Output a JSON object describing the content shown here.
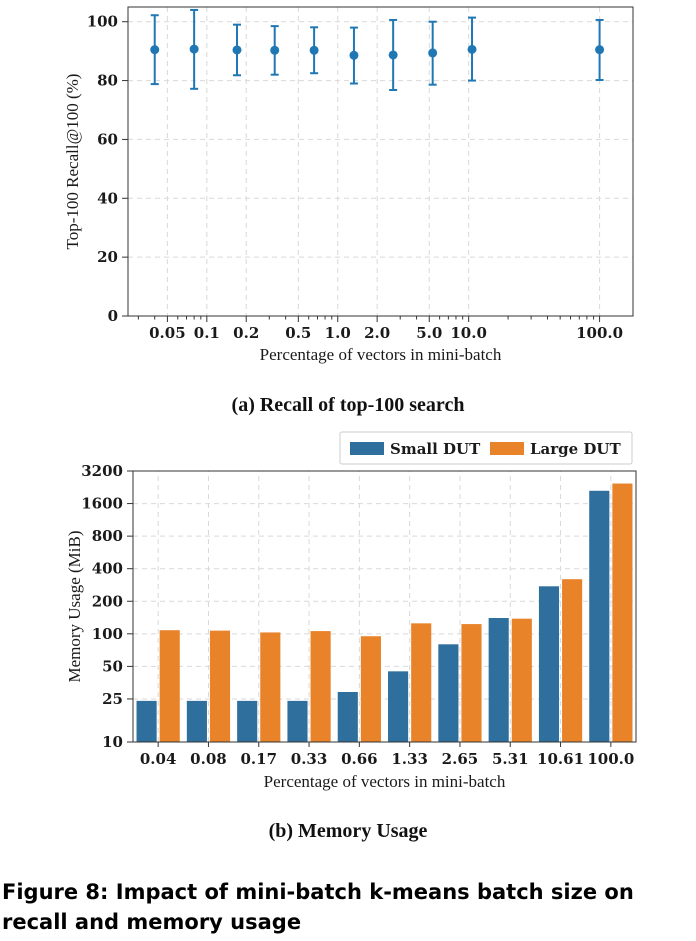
{
  "figure_caption": "Figure 8: Impact of mini-batch k-means batch size on recall and memory usage",
  "colors": {
    "recall": "#1f77b4",
    "small": "#2e6f9e",
    "large": "#e8832a",
    "grid": "#d9d9d9"
  },
  "chart_data": [
    {
      "type": "scatter",
      "subcaption": "(a) Recall of top-100 search",
      "xlabel": "Percentage of vectors in mini-batch",
      "ylabel": "Top-100 Recall@100 (%)",
      "x_scale": "log",
      "xlim": [
        0.025,
        180
      ],
      "ylim": [
        0,
        105
      ],
      "x_ticks": [
        0.05,
        0.1,
        0.2,
        0.5,
        1.0,
        2.0,
        5.0,
        10.0,
        100.0
      ],
      "x_tick_labels": [
        "0.05",
        "0.1",
        "0.2",
        "0.5",
        "1.0",
        "2.0",
        "5.0",
        "10.0",
        "100.0"
      ],
      "y_ticks": [
        0,
        20,
        40,
        60,
        80,
        100
      ],
      "y_tick_labels": [
        "0",
        "20",
        "40",
        "60",
        "80",
        "100"
      ],
      "grid": true,
      "points": [
        {
          "x": 0.04,
          "y": 90.5,
          "low": 78.8,
          "high": 102.2
        },
        {
          "x": 0.08,
          "y": 90.7,
          "low": 77.2,
          "high": 104.0
        },
        {
          "x": 0.17,
          "y": 90.4,
          "low": 81.8,
          "high": 99.0
        },
        {
          "x": 0.33,
          "y": 90.3,
          "low": 82.0,
          "high": 98.5
        },
        {
          "x": 0.66,
          "y": 90.3,
          "low": 82.5,
          "high": 98.1
        },
        {
          "x": 1.33,
          "y": 88.6,
          "low": 79.0,
          "high": 98.0
        },
        {
          "x": 2.65,
          "y": 88.7,
          "low": 76.8,
          "high": 100.6
        },
        {
          "x": 5.31,
          "y": 89.4,
          "low": 78.6,
          "high": 100.0
        },
        {
          "x": 10.61,
          "y": 90.6,
          "low": 80.0,
          "high": 101.4
        },
        {
          "x": 100.0,
          "y": 90.5,
          "low": 80.2,
          "high": 100.6
        }
      ]
    },
    {
      "type": "bar",
      "subcaption": "(b) Memory Usage",
      "xlabel": "Percentage of vectors in mini-batch",
      "ylabel": "Memory Usage (MiB)",
      "y_scale": "log",
      "ylim": [
        10,
        3200
      ],
      "y_ticks": [
        10,
        25,
        50,
        100,
        200,
        400,
        800,
        1600,
        3200
      ],
      "y_tick_labels": [
        "10",
        "25",
        "50",
        "100",
        "200",
        "400",
        "800",
        "1600",
        "3200"
      ],
      "grid": true,
      "legend": "top-right",
      "categories": [
        "0.04",
        "0.08",
        "0.17",
        "0.33",
        "0.66",
        "1.33",
        "2.65",
        "5.31",
        "10.61",
        "100.0"
      ],
      "series": [
        {
          "name": "Small DUT",
          "values": [
            24,
            24,
            24,
            24,
            29,
            45,
            80,
            140,
            275,
            2100
          ]
        },
        {
          "name": "Large DUT",
          "values": [
            108,
            107,
            103,
            106,
            95,
            125,
            123,
            138,
            320,
            2450
          ]
        }
      ]
    }
  ]
}
